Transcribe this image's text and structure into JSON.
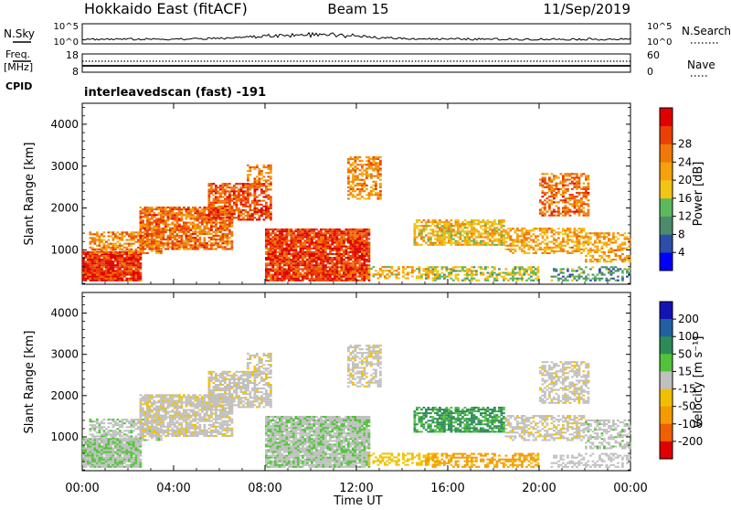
{
  "header": {
    "station": "Hokkaido East (fitACF)",
    "beam": "Beam 15",
    "date": "11/Sep/2019"
  },
  "panels": {
    "nsky_label": "N.Sky",
    "nsky_ticks": [
      "10^5",
      "10^0"
    ],
    "nsearch_label": "N.Search",
    "freq_label_1": "Freq.",
    "freq_label_2": "[MHz]",
    "freq_ticks": [
      "18",
      "8"
    ],
    "nave_label": "Nave",
    "nave_ticks": [
      "60",
      "0"
    ],
    "cpid_label": "CPID",
    "cpid_text": "interleavedscan (fast) -191"
  },
  "axes": {
    "ylabel": "Slant Range [km]",
    "xlabel": "Time UT",
    "y_ticks": [
      1000,
      2000,
      3000,
      4000
    ],
    "x_ticks": [
      "00:00",
      "04:00",
      "08:00",
      "12:00",
      "16:00",
      "20:00",
      "00:00"
    ]
  },
  "colorbars": {
    "power": {
      "label": "Power [dB]",
      "ticks": [
        4,
        8,
        12,
        16,
        20,
        24,
        28
      ],
      "colors": [
        "#0000ff",
        "#2c4ea8",
        "#4c8c6c",
        "#5cb85c",
        "#f2c414",
        "#f5a20c",
        "#f07808",
        "#ea4006",
        "#e00000"
      ]
    },
    "velocity": {
      "label": "Velocity [m s⁻¹]",
      "ticks": [
        "200",
        "100",
        "50",
        "15",
        "-15",
        "-50",
        "-100",
        "-200"
      ],
      "colors": [
        "#1414b4",
        "#2060a0",
        "#2e8b57",
        "#52c23a",
        "#c0c0c0",
        "#f0c000",
        "#f59a00",
        "#f06000",
        "#e00000"
      ]
    }
  },
  "chart_data": {
    "type": "heatmap",
    "x_range_hours": [
      0,
      24
    ],
    "y_range_km": [
      180,
      4500
    ],
    "regions": [
      {
        "t": [
          0.0,
          2.6
        ],
        "r": [
          250,
          950
        ],
        "power": 28,
        "velocity": 12,
        "density": 0.95
      },
      {
        "t": [
          0.3,
          3.5
        ],
        "r": [
          900,
          1400
        ],
        "power": 22,
        "velocity": 5,
        "density": 0.6
      },
      {
        "t": [
          2.5,
          6.5
        ],
        "r": [
          1000,
          2000
        ],
        "power": 24,
        "velocity": -5,
        "density": 0.8
      },
      {
        "t": [
          5.5,
          8.2
        ],
        "r": [
          1700,
          2600
        ],
        "power": 26,
        "velocity": -5,
        "density": 0.7
      },
      {
        "t": [
          7.2,
          8.2
        ],
        "r": [
          2500,
          3000
        ],
        "power": 22,
        "velocity": -8,
        "density": 0.5
      },
      {
        "t": [
          8.0,
          12.5
        ],
        "r": [
          250,
          1500
        ],
        "power": 27,
        "velocity": 10,
        "density": 0.9
      },
      {
        "t": [
          11.6,
          13.0
        ],
        "r": [
          2200,
          3200
        ],
        "power": 22,
        "velocity": -5,
        "density": 0.6
      },
      {
        "t": [
          12.5,
          15.5
        ],
        "r": [
          300,
          600
        ],
        "power": 18,
        "velocity": -30,
        "density": 0.55
      },
      {
        "t": [
          15.0,
          20.0
        ],
        "r": [
          250,
          600
        ],
        "power": 14,
        "velocity": -60,
        "density": 0.55
      },
      {
        "t": [
          14.5,
          18.5
        ],
        "r": [
          1100,
          1700
        ],
        "power": 18,
        "velocity": 55,
        "density": 0.7
      },
      {
        "t": [
          18.5,
          22.0
        ],
        "r": [
          900,
          1500
        ],
        "power": 20,
        "velocity": -5,
        "density": 0.55
      },
      {
        "t": [
          20.0,
          22.2
        ],
        "r": [
          1800,
          2800
        ],
        "power": 24,
        "velocity": -5,
        "density": 0.55
      },
      {
        "t": [
          22.0,
          24.0
        ],
        "r": [
          700,
          1400
        ],
        "power": 20,
        "velocity": 5,
        "density": 0.5
      },
      {
        "t": [
          20.5,
          24.0
        ],
        "r": [
          250,
          600
        ],
        "power": 10,
        "velocity": 0,
        "density": 0.45
      }
    ]
  }
}
